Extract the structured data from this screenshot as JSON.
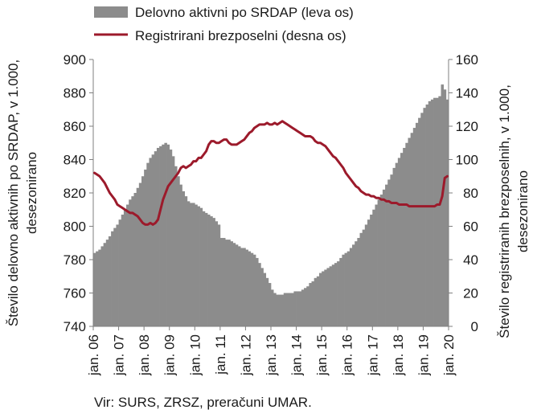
{
  "chart_data": {
    "type": "bar+line",
    "title": "",
    "source": "Vir: SURS, ZRSZ, preračuni UMAR.",
    "legend_position": "top",
    "grid": false,
    "series": [
      {
        "name": "Delovno aktivni po SRDAP (leva os)",
        "type": "bar",
        "axis": "left",
        "color": "#8c8c8c",
        "values": [
          784,
          785,
          786,
          788,
          790,
          792,
          794,
          797,
          799,
          801,
          804,
          807,
          810,
          813,
          816,
          818,
          820,
          823,
          826,
          830,
          834,
          838,
          841,
          843,
          845,
          847,
          848,
          849,
          850,
          849,
          846,
          842,
          836,
          830,
          825,
          821,
          818,
          815,
          814,
          814,
          813,
          812,
          811,
          809,
          808,
          807,
          806,
          805,
          803,
          801,
          793,
          793,
          792,
          792,
          791,
          790,
          789,
          788,
          787,
          787,
          786,
          785,
          784,
          783,
          781,
          778,
          775,
          772,
          769,
          766,
          762,
          760,
          759,
          759,
          759,
          760,
          760,
          760,
          760,
          761,
          761,
          761,
          762,
          763,
          764,
          766,
          767,
          769,
          770,
          772,
          773,
          774,
          775,
          776,
          777,
          778,
          779,
          781,
          783,
          784,
          785,
          787,
          789,
          791,
          793,
          796,
          798,
          801,
          804,
          807,
          810,
          813,
          816,
          819,
          822,
          825,
          828,
          831,
          835,
          838,
          841,
          844,
          847,
          850,
          853,
          856,
          859,
          862,
          865,
          868,
          871,
          873,
          875,
          876,
          877,
          877,
          878,
          885,
          882,
          876
        ]
      },
      {
        "name": "Registrirani brezposelni (desna os)",
        "type": "line",
        "axis": "right",
        "color": "#9c1a2b",
        "values": [
          92,
          91,
          90,
          88,
          86,
          83,
          80,
          78,
          76,
          73,
          72,
          71,
          70,
          69,
          68,
          68,
          67,
          66,
          64,
          62,
          61,
          61,
          62,
          61,
          62,
          64,
          70,
          76,
          80,
          84,
          86,
          88,
          90,
          92,
          95,
          96,
          95,
          96,
          97,
          99,
          99,
          101,
          101,
          103,
          105,
          109,
          111,
          111,
          110,
          110,
          111,
          112,
          112,
          110,
          109,
          109,
          109,
          110,
          111,
          112,
          114,
          116,
          117,
          119,
          120,
          121,
          121,
          121,
          122,
          121,
          121,
          122,
          121,
          122,
          123,
          122,
          121,
          120,
          119,
          118,
          117,
          116,
          115,
          114,
          114,
          114,
          113,
          111,
          110,
          110,
          109,
          108,
          106,
          104,
          102,
          101,
          99,
          97,
          95,
          92,
          90,
          88,
          86,
          84,
          83,
          81,
          80,
          79,
          79,
          78,
          78,
          77,
          77,
          76,
          76,
          75,
          75,
          74,
          74,
          74,
          73,
          73,
          73,
          73,
          72,
          72,
          72,
          72,
          72,
          72,
          72,
          72,
          72,
          72,
          72,
          73,
          73,
          78,
          89,
          90
        ]
      }
    ],
    "x_tick_labels": [
      "jan. 06",
      "jan. 07",
      "jan. 08",
      "jan. 09",
      "jan. 10",
      "jan. 11",
      "jan. 12",
      "jan. 13",
      "jan. 14",
      "jan. 15",
      "jan. 16",
      "jan. 17",
      "jan. 18",
      "jan. 19",
      "jan. 20"
    ],
    "x_points_per_tick": 10,
    "y_left": {
      "label_line1": "Število delovno aktivnih po SRDAP, v 1.000,",
      "label_line2": "desezonirano",
      "ylim": [
        740,
        900
      ],
      "ticks": [
        740,
        760,
        780,
        800,
        820,
        840,
        860,
        880,
        900
      ]
    },
    "y_right": {
      "label_line1": "Število registriranih brezposelnih, v 1.000,",
      "label_line2": "desezonirano",
      "ylim": [
        0,
        160
      ],
      "ticks": [
        0,
        20,
        40,
        60,
        80,
        100,
        120,
        140,
        160
      ]
    }
  }
}
